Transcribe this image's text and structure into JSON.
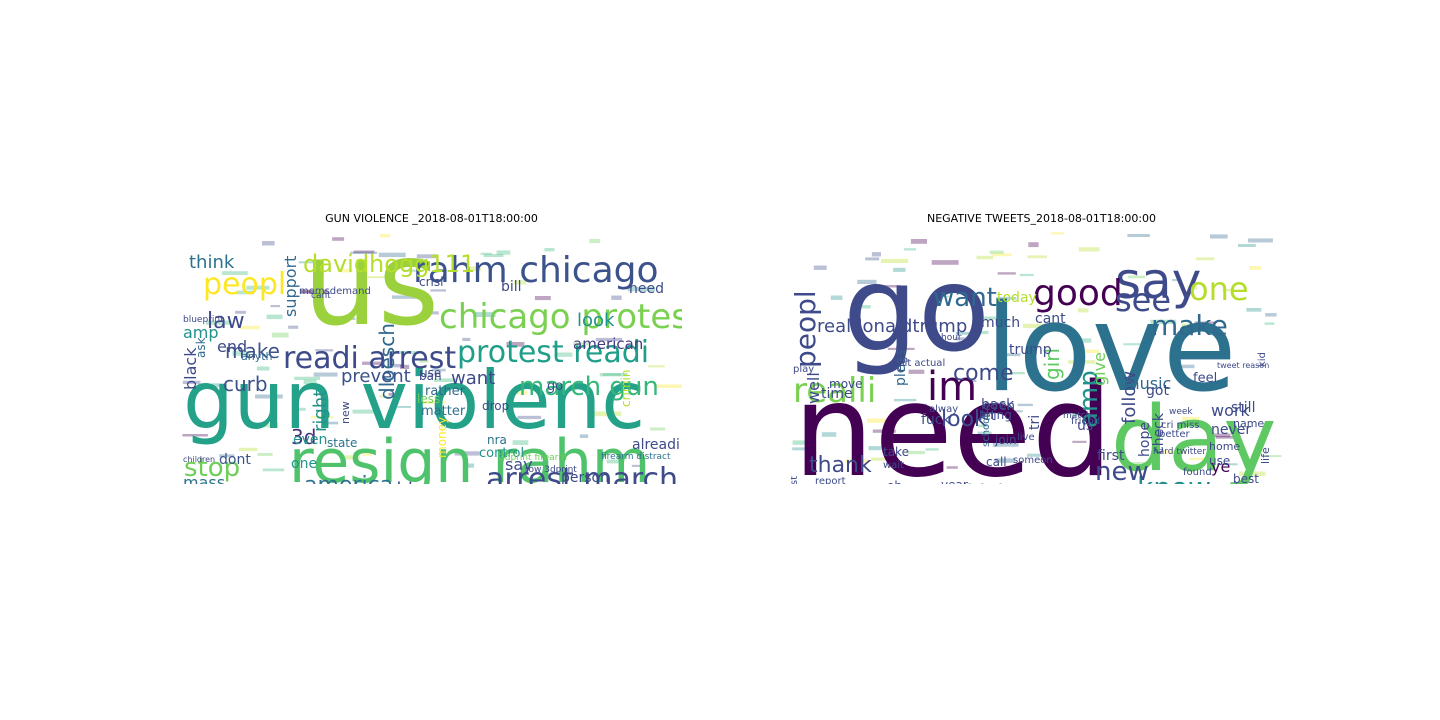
{
  "figure": {
    "background": "#ffffff"
  },
  "chart_data": [
    {
      "type": "wordcloud",
      "title": "GUN VIOLENCE _2018-08-01T18:00:00",
      "colormap": "viridis",
      "words": [
        {
          "text": "us",
          "weight": 1.0,
          "color": "#9ad13c"
        },
        {
          "text": "gun violenc",
          "weight": 0.92,
          "color": "#23a189"
        },
        {
          "text": "resign rahm",
          "weight": 0.78,
          "color": "#4ec36b"
        },
        {
          "text": "rahm chicago",
          "weight": 0.52,
          "color": "#3b528b"
        },
        {
          "text": "chicago protest",
          "weight": 0.48,
          "color": "#7ad151"
        },
        {
          "text": "readi arrest",
          "weight": 0.45,
          "color": "#3e4a89"
        },
        {
          "text": "protest readi",
          "weight": 0.43,
          "color": "#1f9e89"
        },
        {
          "text": "arrest march",
          "weight": 0.4,
          "color": "#3e4a89"
        },
        {
          "text": "march gun",
          "weight": 0.36,
          "color": "#35b779"
        },
        {
          "text": "peopl",
          "weight": 0.34,
          "color": "#fde725"
        },
        {
          "text": "davidhogg111",
          "weight": 0.3,
          "color": "#b5de2b"
        },
        {
          "text": "america",
          "weight": 0.28,
          "color": "#2c728e"
        },
        {
          "text": "stop",
          "weight": 0.3,
          "color": "#6ece58"
        },
        {
          "text": "law",
          "weight": 0.26,
          "color": "#3e4a89"
        },
        {
          "text": "dloesch",
          "weight": 0.24,
          "color": "#31688e"
        },
        {
          "text": "make",
          "weight": 0.22,
          "color": "#3b528b"
        },
        {
          "text": "curb",
          "weight": 0.22,
          "color": "#3b528b"
        },
        {
          "text": "think",
          "weight": 0.2,
          "color": "#2c728e"
        },
        {
          "text": "look",
          "weight": 0.2,
          "color": "#21918c"
        },
        {
          "text": "want",
          "weight": 0.2,
          "color": "#3e4a89"
        },
        {
          "text": "right",
          "weight": 0.2,
          "color": "#21918c"
        },
        {
          "text": "3d",
          "weight": 0.2,
          "color": "#46327e"
        },
        {
          "text": "problem",
          "weight": 0.18,
          "color": "#3e4a89"
        },
        {
          "text": "prevent",
          "weight": 0.18,
          "color": "#3b528b"
        },
        {
          "text": "amp",
          "weight": 0.17,
          "color": "#21918c"
        },
        {
          "text": "mass",
          "weight": 0.17,
          "color": "#2c728e"
        },
        {
          "text": "support",
          "weight": 0.16,
          "color": "#31688e"
        },
        {
          "text": "black",
          "weight": 0.16,
          "color": "#3e4a89"
        },
        {
          "text": "need",
          "weight": 0.15,
          "color": "#3e4a89"
        },
        {
          "text": "end",
          "weight": 0.15,
          "color": "#3e4a89"
        },
        {
          "text": "dont",
          "weight": 0.15,
          "color": "#3b528b"
        },
        {
          "text": "one",
          "weight": 0.15,
          "color": "#21918c"
        },
        {
          "text": "say",
          "weight": 0.15,
          "color": "#3e4a89"
        },
        {
          "text": "american",
          "weight": 0.14,
          "color": "#443983"
        },
        {
          "text": "bill",
          "weight": 0.14,
          "color": "#3e4a89"
        },
        {
          "text": "even",
          "weight": 0.14,
          "color": "#21918c"
        },
        {
          "text": "safeti",
          "weight": 0.13,
          "color": "#31688e"
        },
        {
          "text": "state",
          "weight": 0.12,
          "color": "#2c728e"
        },
        {
          "text": "crisi",
          "weight": 0.12,
          "color": "#3e4a89"
        },
        {
          "text": "person",
          "weight": 0.12,
          "color": "#3e4a89"
        },
        {
          "text": "go",
          "weight": 0.12,
          "color": "#3e4a89"
        },
        {
          "text": "rather",
          "weight": 0.11,
          "color": "#31688e"
        },
        {
          "text": "matter",
          "weight": 0.11,
          "color": "#2c728e"
        },
        {
          "text": "alreadi",
          "weight": 0.11,
          "color": "#3e4a89"
        },
        {
          "text": "control",
          "weight": 0.11,
          "color": "#21918c"
        },
        {
          "text": "use",
          "weight": 0.11,
          "color": "#3e4a89"
        },
        {
          "text": "drop",
          "weight": 0.11,
          "color": "#3e4a89"
        },
        {
          "text": "nra",
          "weight": 0.1,
          "color": "#2c728e"
        },
        {
          "text": "ban",
          "weight": 0.1,
          "color": "#3e4a89"
        },
        {
          "text": "less",
          "weight": 0.1,
          "color": "#6ece58"
        },
        {
          "text": "ask",
          "weight": 0.1,
          "color": "#31688e"
        },
        {
          "text": "anyth",
          "weight": 0.1,
          "color": "#31688e"
        },
        {
          "text": "momsdemand",
          "weight": 0.09,
          "color": "#3e4a89"
        },
        {
          "text": "money",
          "weight": 0.1,
          "color": "#fde725"
        },
        {
          "text": "crimin",
          "weight": 0.09,
          "color": "#b5de2b"
        },
        {
          "text": "new",
          "weight": 0.09,
          "color": "#3e4a89"
        },
        {
          "text": "blueprint",
          "weight": 0.08,
          "color": "#3e4a89"
        },
        {
          "text": "cant",
          "weight": 0.08,
          "color": "#3e4a89"
        },
        {
          "text": "firearm distract",
          "weight": 0.07,
          "color": "#2c728e"
        },
        {
          "text": "3dprint firearm",
          "weight": 0.07,
          "color": "#6ece58"
        },
        {
          "text": "row 3dprint",
          "weight": 0.07,
          "color": "#3e4a89"
        },
        {
          "text": "children",
          "weight": 0.06,
          "color": "#3e4a89"
        }
      ]
    },
    {
      "type": "wordcloud",
      "title": "NEGATIVE TWEETS_2018-08-01T18:00:00",
      "colormap": "viridis",
      "words": [
        {
          "text": "need",
          "weight": 1.0,
          "color": "#440154"
        },
        {
          "text": "go",
          "weight": 0.98,
          "color": "#3e4a89"
        },
        {
          "text": "love",
          "weight": 0.92,
          "color": "#2c728e"
        },
        {
          "text": "day",
          "weight": 0.82,
          "color": "#5ec962"
        },
        {
          "text": "say",
          "weight": 0.48,
          "color": "#3e4a89"
        },
        {
          "text": "im",
          "weight": 0.36,
          "color": "#440154"
        },
        {
          "text": "good",
          "weight": 0.34,
          "color": "#440154"
        },
        {
          "text": "one",
          "weight": 0.32,
          "color": "#b5de2b"
        },
        {
          "text": "see",
          "weight": 0.32,
          "color": "#3e4a89"
        },
        {
          "text": "realli",
          "weight": 0.3,
          "color": "#7ad151"
        },
        {
          "text": "make",
          "weight": 0.28,
          "color": "#31688e"
        },
        {
          "text": "know",
          "weight": 0.28,
          "color": "#21918c"
        },
        {
          "text": "peopl",
          "weight": 0.26,
          "color": "#3e4a89"
        },
        {
          "text": "want",
          "weight": 0.24,
          "color": "#31688e"
        },
        {
          "text": "new",
          "weight": 0.24,
          "color": "#3e4a89"
        },
        {
          "text": "amp",
          "weight": 0.22,
          "color": "#21918c"
        },
        {
          "text": "come",
          "weight": 0.2,
          "color": "#3e4a89"
        },
        {
          "text": "look",
          "weight": 0.2,
          "color": "#3e4a89"
        },
        {
          "text": "thank",
          "weight": 0.19,
          "color": "#3e4a89"
        },
        {
          "text": "think",
          "weight": 0.18,
          "color": "#21918c"
        },
        {
          "text": "girl",
          "weight": 0.17,
          "color": "#5ec962"
        },
        {
          "text": "realdonaldtrump",
          "weight": 0.16,
          "color": "#3e4a89"
        },
        {
          "text": "follow",
          "weight": 0.15,
          "color": "#3e4a89"
        },
        {
          "text": "well",
          "weight": 0.14,
          "color": "#3e4a89"
        },
        {
          "text": "give",
          "weight": 0.14,
          "color": "#6ece58"
        },
        {
          "text": "music",
          "weight": 0.14,
          "color": "#31688e"
        },
        {
          "text": "work",
          "weight": 0.13,
          "color": "#3e4a89"
        },
        {
          "text": "hope",
          "weight": 0.13,
          "color": "#3e4a89"
        },
        {
          "text": "check",
          "weight": 0.13,
          "color": "#3e4a89"
        },
        {
          "text": "time",
          "weight": 0.12,
          "color": "#3e4a89"
        },
        {
          "text": "still",
          "weight": 0.12,
          "color": "#3e4a89"
        },
        {
          "text": "back",
          "weight": 0.12,
          "color": "#3e4a89"
        },
        {
          "text": "fuck",
          "weight": 0.12,
          "color": "#3e4a89"
        },
        {
          "text": "got",
          "weight": 0.12,
          "color": "#3e4a89"
        },
        {
          "text": "pleas",
          "weight": 0.12,
          "color": "#31688e"
        },
        {
          "text": "right",
          "weight": 0.11,
          "color": "#3e4a89"
        },
        {
          "text": "much",
          "weight": 0.11,
          "color": "#3e4a89"
        },
        {
          "text": "lol",
          "weight": 0.11,
          "color": "#3e4a89"
        },
        {
          "text": "ye",
          "weight": 0.11,
          "color": "#440154"
        },
        {
          "text": "us",
          "weight": 0.11,
          "color": "#3e4a89"
        },
        {
          "text": "feel",
          "weight": 0.11,
          "color": "#3e4a89"
        },
        {
          "text": "tri",
          "weight": 0.1,
          "color": "#3e4a89"
        },
        {
          "text": "first",
          "weight": 0.1,
          "color": "#3e4a89"
        },
        {
          "text": "never",
          "weight": 0.1,
          "color": "#3e4a89"
        },
        {
          "text": "trump",
          "weight": 0.1,
          "color": "#3e4a89"
        },
        {
          "text": "even",
          "weight": 0.1,
          "color": "#3e4a89"
        },
        {
          "text": "let",
          "weight": 0.1,
          "color": "#3e4a89"
        },
        {
          "text": "today",
          "weight": 0.09,
          "color": "#b5de2b"
        },
        {
          "text": "cant",
          "weight": 0.09,
          "color": "#3e4a89"
        },
        {
          "text": "join",
          "weight": 0.09,
          "color": "#3e4a89"
        },
        {
          "text": "take",
          "weight": 0.09,
          "color": "#3e4a89"
        },
        {
          "text": "thing",
          "weight": 0.09,
          "color": "#3e4a89"
        },
        {
          "text": "move",
          "weight": 0.09,
          "color": "#3e4a89"
        },
        {
          "text": "call",
          "weight": 0.09,
          "color": "#3e4a89"
        },
        {
          "text": "year",
          "weight": 0.09,
          "color": "#3e4a89"
        },
        {
          "text": "dont",
          "weight": 0.09,
          "color": "#3e4a89"
        },
        {
          "text": "best",
          "weight": 0.09,
          "color": "#3e4a89"
        },
        {
          "text": "use",
          "weight": 0.09,
          "color": "#3e4a89"
        },
        {
          "text": "happi",
          "weight": 0.08,
          "color": "#3e4a89"
        },
        {
          "text": "home",
          "weight": 0.08,
          "color": "#3e4a89"
        },
        {
          "text": "name",
          "weight": 0.08,
          "color": "#3e4a89"
        },
        {
          "text": "alway",
          "weight": 0.08,
          "color": "#3e4a89"
        },
        {
          "text": "play",
          "weight": 0.08,
          "color": "#3e4a89"
        },
        {
          "text": "live",
          "weight": 0.08,
          "color": "#3e4a89"
        },
        {
          "text": "school",
          "weight": 0.08,
          "color": "#31688e"
        },
        {
          "text": "someon",
          "weight": 0.08,
          "color": "#3e4a89"
        },
        {
          "text": "wait",
          "weight": 0.08,
          "color": "#3e4a89"
        },
        {
          "text": "oh",
          "weight": 0.08,
          "color": "#3e4a89"
        },
        {
          "text": "id",
          "weight": 0.08,
          "color": "#3e4a89"
        },
        {
          "text": "don",
          "weight": 0.08,
          "color": "#3e4a89"
        },
        {
          "text": "guy",
          "weight": 0.08,
          "color": "#7ad151"
        },
        {
          "text": "life",
          "weight": 0.07,
          "color": "#3e4a89"
        },
        {
          "text": "kid",
          "weight": 0.07,
          "color": "#3e4a89"
        },
        {
          "text": "better",
          "weight": 0.07,
          "color": "#3e4a89"
        },
        {
          "text": "friend",
          "weight": 0.07,
          "color": "#3e4a89"
        },
        {
          "text": "report",
          "weight": 0.07,
          "color": "#3e4a89"
        },
        {
          "text": "via",
          "weight": 0.07,
          "color": "#3e4a89"
        },
        {
          "text": "last",
          "weight": 0.07,
          "color": "#3e4a89"
        },
        {
          "text": "mean",
          "weight": 0.07,
          "color": "#3e4a89"
        },
        {
          "text": "found",
          "weight": 0.07,
          "color": "#3e4a89"
        },
        {
          "text": "shit actual",
          "weight": 0.06,
          "color": "#3e4a89"
        },
        {
          "text": "cri miss",
          "weight": 0.06,
          "color": "#3e4a89"
        },
        {
          "text": "week",
          "weight": 0.06,
          "color": "#3e4a89"
        },
        {
          "text": "hour",
          "weight": 0.06,
          "color": "#3e4a89"
        },
        {
          "text": "tweet reason",
          "weight": 0.05,
          "color": "#3e4a89"
        },
        {
          "text": "hard twitter",
          "weight": 0.05,
          "color": "#3e4a89"
        },
        {
          "text": "real",
          "weight": 0.06,
          "color": "#3e4a89"
        },
        {
          "text": "everi lmao",
          "weight": 0.05,
          "color": "#3e4a89"
        },
        {
          "text": "match",
          "weight": 0.05,
          "color": "#3e4a89"
        },
        {
          "text": "presid",
          "weight": 0.06,
          "color": "#3e4a89"
        }
      ]
    }
  ]
}
